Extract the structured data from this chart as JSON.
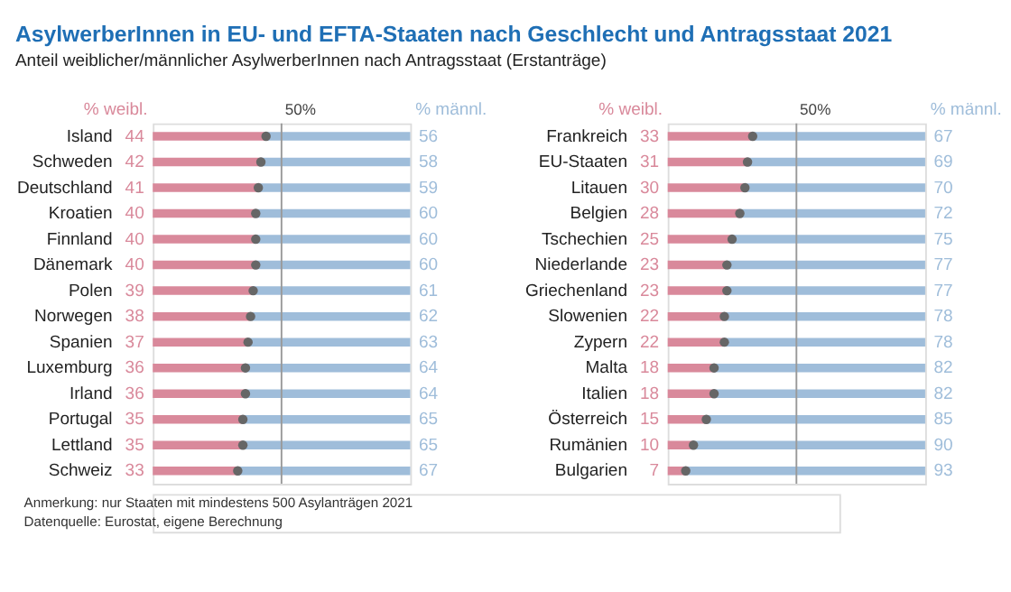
{
  "chart_data": [
    {
      "type": "bar",
      "orientation": "horizontal",
      "stacked": true,
      "title": "AsylwerberInnen in EU- und EFTA-Staaten nach Geschlecht und Antragsstaat 2021",
      "subtitle": "Anteil weiblicher/männlicher AsylwerberInnen nach Antragsstaat (Erstanträge)",
      "categories": [
        "Island",
        "Schweden",
        "Deutschland",
        "Kroatien",
        "Finnland",
        "Dänemark",
        "Polen",
        "Norwegen",
        "Spanien",
        "Luxemburg",
        "Irland",
        "Portugal",
        "Lettland",
        "Schweiz"
      ],
      "series": [
        {
          "name": "% weibl.",
          "color": "#d9899b",
          "values": [
            44,
            42,
            41,
            40,
            40,
            40,
            39,
            38,
            37,
            36,
            36,
            35,
            35,
            33
          ],
          "value_labels": [
            "44",
            "42",
            "41",
            "40",
            "40",
            "40",
            "39",
            "38",
            "37",
            "36",
            "36",
            "35",
            "35",
            "33"
          ]
        },
        {
          "name": "% männl.",
          "color": "#9fbdda",
          "values": [
            56,
            58,
            59,
            60,
            60,
            60,
            61,
            62,
            63,
            64,
            64,
            65,
            65,
            67
          ],
          "value_labels": [
            "56",
            "58",
            "59",
            "60",
            "60",
            "60",
            "61",
            "62",
            "63",
            "64",
            "64",
            "65",
            "65",
            "67"
          ]
        },
        {
          "type": "scatter",
          "color": "#666666",
          "marker": "circle",
          "values": [
            44,
            42,
            41,
            40,
            40,
            40,
            39,
            38,
            37,
            36,
            36,
            35,
            35,
            33
          ]
        }
      ],
      "xlim": [
        0,
        100
      ],
      "ref_lines": [
        {
          "axis": "x",
          "value": 50,
          "label": "50%",
          "color": "#999999"
        }
      ],
      "tick_labels": "y",
      "grid": false,
      "legend": false
    },
    {
      "type": "bar",
      "orientation": "horizontal",
      "stacked": true,
      "categories": [
        "Frankreich",
        "EU-Staaten",
        "Litauen",
        "Belgien",
        "Tschechien",
        "Niederlande",
        "Griechenland",
        "Slowenien",
        "Zypern",
        "Malta",
        "Italien",
        "Österreich",
        "Rumänien",
        "Bulgarien"
      ],
      "series": [
        {
          "name": "% weibl.",
          "color": "#d9899b",
          "values": [
            33,
            31,
            30,
            28,
            25,
            23,
            23,
            22,
            22,
            18,
            18,
            15,
            10,
            7
          ],
          "value_labels": [
            "33",
            "31",
            "30",
            "28",
            "25",
            "23",
            "23",
            "22",
            "22",
            "18",
            "18",
            "15",
            "10",
            "7"
          ]
        },
        {
          "name": "% männl.",
          "color": "#9fbdda",
          "values": [
            67,
            69,
            70,
            72,
            75,
            77,
            77,
            78,
            78,
            82,
            82,
            85,
            90,
            93
          ],
          "value_labels": [
            "67",
            "69",
            "70",
            "72",
            "75",
            "77",
            "77",
            "78",
            "78",
            "82",
            "82",
            "85",
            "90",
            "93"
          ]
        },
        {
          "type": "scatter",
          "color": "#666666",
          "marker": "circle",
          "values": [
            33,
            31,
            30,
            28,
            25,
            23,
            23,
            22,
            22,
            18,
            18,
            15,
            10,
            7
          ]
        }
      ],
      "xlim": [
        0,
        100
      ],
      "ref_lines": [
        {
          "axis": "x",
          "value": 50,
          "label": "50%",
          "color": "#999999"
        }
      ],
      "tick_labels": "y",
      "grid": false,
      "legend": false,
      "annotations": [
        "Anmerkung: nur Staaten mit mindestens 500 Asylanträgen 2021",
        "Datenquelle: Eurostat, eigene Berechnung"
      ]
    }
  ]
}
